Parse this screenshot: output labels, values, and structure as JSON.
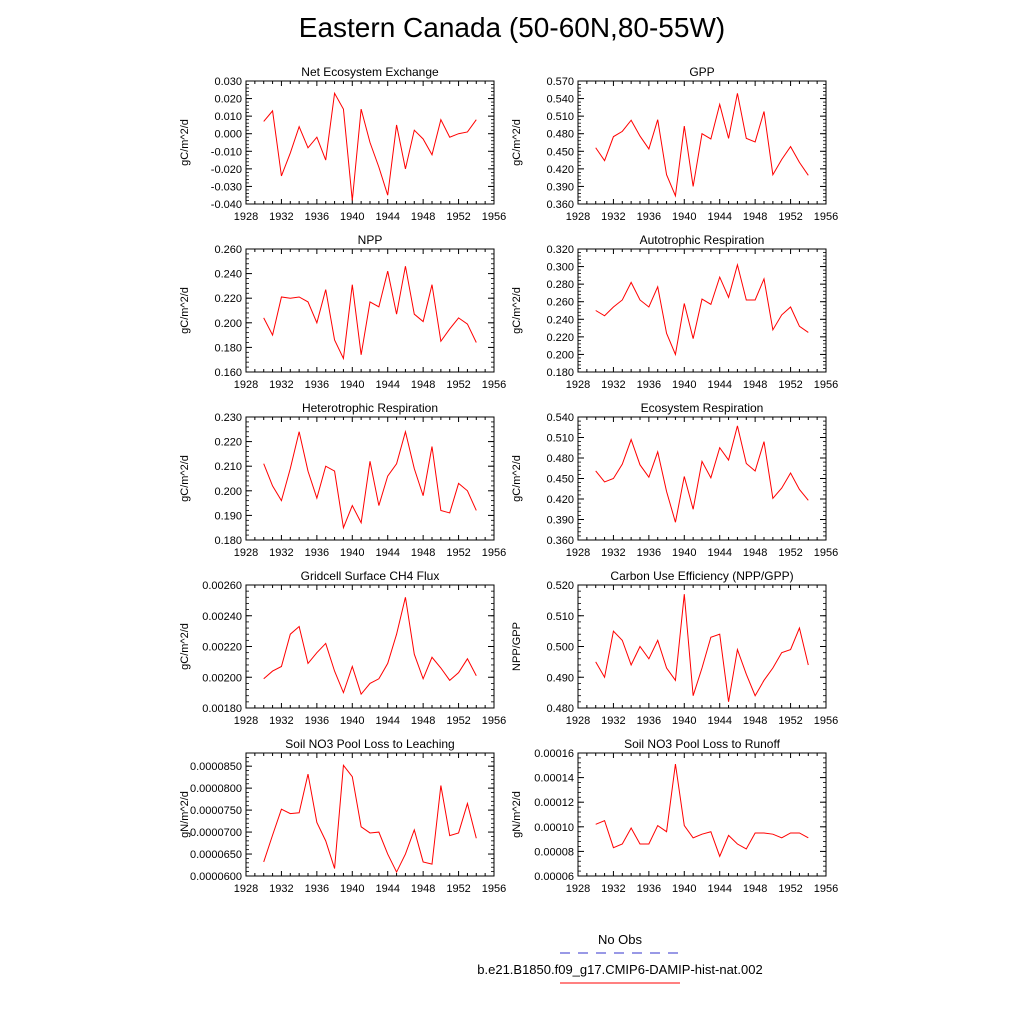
{
  "title": "Eastern Canada (50-60N,80-55W)",
  "legend": [
    {
      "label": "No Obs",
      "color": "#3333cc",
      "style": "dashed"
    },
    {
      "label": "b.e21.B1850.f09_g17.CMIP6-DAMIP-hist-nat.002",
      "color": "#ff0000",
      "style": "solid"
    }
  ],
  "chart_data": [
    {
      "type": "line",
      "title": "Net Ecosystem Exchange",
      "ylabel": "gC/m^2/d",
      "xlim": [
        1928,
        1956
      ],
      "xticks": [
        "1928",
        "1932",
        "1936",
        "1940",
        "1944",
        "1948",
        "1952",
        "1956"
      ],
      "ylim": [
        -0.04,
        0.03
      ],
      "yticks": [
        "-0.040",
        "-0.030",
        "-0.020",
        "-0.010",
        "0.000",
        "0.010",
        "0.020",
        "0.030"
      ],
      "x": [
        1930,
        1931,
        1932,
        1933,
        1934,
        1935,
        1936,
        1937,
        1938,
        1939,
        1940,
        1941,
        1942,
        1943,
        1944,
        1945,
        1946,
        1947,
        1948,
        1949,
        1950,
        1951,
        1952,
        1953,
        1954
      ],
      "series": [
        {
          "color": "#ff0000",
          "values": [
            0.007,
            0.013,
            -0.024,
            -0.011,
            0.004,
            -0.008,
            -0.002,
            -0.015,
            0.023,
            0.014,
            -0.038,
            0.014,
            -0.005,
            -0.019,
            -0.035,
            0.005,
            -0.02,
            0.002,
            -0.003,
            -0.012,
            0.008,
            -0.002,
            -0.0,
            0.001,
            0.008
          ]
        }
      ]
    },
    {
      "type": "line",
      "title": "GPP",
      "ylabel": "gC/m^2/d",
      "xlim": [
        1928,
        1956
      ],
      "xticks": [
        "1928",
        "1932",
        "1936",
        "1940",
        "1944",
        "1948",
        "1952",
        "1956"
      ],
      "ylim": [
        0.36,
        0.57
      ],
      "yticks": [
        "0.360",
        "0.390",
        "0.420",
        "0.450",
        "0.480",
        "0.510",
        "0.540",
        "0.570"
      ],
      "x": [
        1930,
        1931,
        1932,
        1933,
        1934,
        1935,
        1936,
        1937,
        1938,
        1939,
        1940,
        1941,
        1942,
        1943,
        1944,
        1945,
        1946,
        1947,
        1948,
        1949,
        1950,
        1951,
        1952,
        1953,
        1954
      ],
      "series": [
        {
          "color": "#ff0000",
          "values": [
            0.456,
            0.434,
            0.475,
            0.484,
            0.503,
            0.476,
            0.454,
            0.504,
            0.41,
            0.374,
            0.493,
            0.39,
            0.48,
            0.471,
            0.53,
            0.472,
            0.549,
            0.472,
            0.466,
            0.518,
            0.41,
            0.436,
            0.458,
            0.431,
            0.409
          ]
        }
      ]
    },
    {
      "type": "line",
      "title": "NPP",
      "ylabel": "gC/m^2/d",
      "xlim": [
        1928,
        1956
      ],
      "xticks": [
        "1928",
        "1932",
        "1936",
        "1940",
        "1944",
        "1948",
        "1952",
        "1956"
      ],
      "ylim": [
        0.16,
        0.26
      ],
      "yticks": [
        "0.160",
        "0.180",
        "0.200",
        "0.220",
        "0.240",
        "0.260"
      ],
      "x": [
        1930,
        1931,
        1932,
        1933,
        1934,
        1935,
        1936,
        1937,
        1938,
        1939,
        1940,
        1941,
        1942,
        1943,
        1944,
        1945,
        1946,
        1947,
        1948,
        1949,
        1950,
        1951,
        1952,
        1953,
        1954
      ],
      "series": [
        {
          "color": "#ff0000",
          "values": [
            0.204,
            0.19,
            0.221,
            0.22,
            0.221,
            0.217,
            0.2,
            0.227,
            0.186,
            0.171,
            0.231,
            0.174,
            0.217,
            0.213,
            0.242,
            0.207,
            0.246,
            0.207,
            0.201,
            0.231,
            0.185,
            0.195,
            0.204,
            0.199,
            0.184
          ]
        }
      ]
    },
    {
      "type": "line",
      "title": "Autotrophic Respiration",
      "ylabel": "gC/m^2/d",
      "xlim": [
        1928,
        1956
      ],
      "xticks": [
        "1928",
        "1932",
        "1936",
        "1940",
        "1944",
        "1948",
        "1952",
        "1956"
      ],
      "ylim": [
        0.18,
        0.32
      ],
      "yticks": [
        "0.180",
        "0.200",
        "0.220",
        "0.240",
        "0.260",
        "0.280",
        "0.300",
        "0.320"
      ],
      "x": [
        1930,
        1931,
        1932,
        1933,
        1934,
        1935,
        1936,
        1937,
        1938,
        1939,
        1940,
        1941,
        1942,
        1943,
        1944,
        1945,
        1946,
        1947,
        1948,
        1949,
        1950,
        1951,
        1952,
        1953,
        1954
      ],
      "series": [
        {
          "color": "#ff0000",
          "values": [
            0.25,
            0.244,
            0.254,
            0.262,
            0.282,
            0.262,
            0.254,
            0.277,
            0.224,
            0.2,
            0.258,
            0.218,
            0.263,
            0.257,
            0.288,
            0.265,
            0.302,
            0.262,
            0.262,
            0.286,
            0.228,
            0.245,
            0.254,
            0.232,
            0.225
          ]
        }
      ]
    },
    {
      "type": "line",
      "title": "Heterotrophic Respiration",
      "ylabel": "gC/m^2/d",
      "xlim": [
        1928,
        1956
      ],
      "xticks": [
        "1928",
        "1932",
        "1936",
        "1940",
        "1944",
        "1948",
        "1952",
        "1956"
      ],
      "ylim": [
        0.18,
        0.23
      ],
      "yticks": [
        "0.180",
        "0.190",
        "0.200",
        "0.210",
        "0.220",
        "0.230"
      ],
      "x": [
        1930,
        1931,
        1932,
        1933,
        1934,
        1935,
        1936,
        1937,
        1938,
        1939,
        1940,
        1941,
        1942,
        1943,
        1944,
        1945,
        1946,
        1947,
        1948,
        1949,
        1950,
        1951,
        1952,
        1953,
        1954
      ],
      "series": [
        {
          "color": "#ff0000",
          "values": [
            0.211,
            0.202,
            0.196,
            0.209,
            0.224,
            0.208,
            0.197,
            0.21,
            0.208,
            0.185,
            0.194,
            0.187,
            0.212,
            0.194,
            0.206,
            0.211,
            0.224,
            0.209,
            0.198,
            0.218,
            0.192,
            0.191,
            0.203,
            0.2,
            0.192
          ]
        }
      ]
    },
    {
      "type": "line",
      "title": "Ecosystem Respiration",
      "ylabel": "gC/m^2/d",
      "xlim": [
        1928,
        1956
      ],
      "xticks": [
        "1928",
        "1932",
        "1936",
        "1940",
        "1944",
        "1948",
        "1952",
        "1956"
      ],
      "ylim": [
        0.36,
        0.54
      ],
      "yticks": [
        "0.360",
        "0.390",
        "0.420",
        "0.450",
        "0.480",
        "0.510",
        "0.540"
      ],
      "x": [
        1930,
        1931,
        1932,
        1933,
        1934,
        1935,
        1936,
        1937,
        1938,
        1939,
        1940,
        1941,
        1942,
        1943,
        1944,
        1945,
        1946,
        1947,
        1948,
        1949,
        1950,
        1951,
        1952,
        1953,
        1954
      ],
      "series": [
        {
          "color": "#ff0000",
          "values": [
            0.461,
            0.445,
            0.45,
            0.471,
            0.507,
            0.47,
            0.452,
            0.489,
            0.431,
            0.386,
            0.453,
            0.405,
            0.475,
            0.451,
            0.495,
            0.477,
            0.527,
            0.472,
            0.461,
            0.504,
            0.421,
            0.436,
            0.458,
            0.434,
            0.418
          ]
        }
      ]
    },
    {
      "type": "line",
      "title": "Gridcell Surface CH4 Flux",
      "ylabel": "gC/m^2/d",
      "xlim": [
        1928,
        1956
      ],
      "xticks": [
        "1928",
        "1932",
        "1936",
        "1940",
        "1944",
        "1948",
        "1952",
        "1956"
      ],
      "ylim": [
        0.0018,
        0.0026
      ],
      "yticks": [
        "0.00180",
        "0.00200",
        "0.00220",
        "0.00240",
        "0.00260"
      ],
      "x": [
        1930,
        1931,
        1932,
        1933,
        1934,
        1935,
        1936,
        1937,
        1938,
        1939,
        1940,
        1941,
        1942,
        1943,
        1944,
        1945,
        1946,
        1947,
        1948,
        1949,
        1950,
        1951,
        1952,
        1953,
        1954
      ],
      "series": [
        {
          "color": "#ff0000",
          "values": [
            0.00199,
            0.00204,
            0.00207,
            0.00228,
            0.00233,
            0.00209,
            0.00216,
            0.00222,
            0.00204,
            0.0019,
            0.00207,
            0.00189,
            0.00196,
            0.00199,
            0.00209,
            0.00228,
            0.00252,
            0.00215,
            0.00199,
            0.00213,
            0.00206,
            0.00198,
            0.00203,
            0.00212,
            0.00201
          ]
        }
      ]
    },
    {
      "type": "line",
      "title": "Carbon Use Efficiency (NPP/GPP)",
      "ylabel": "NPP/GPP",
      "xlim": [
        1928,
        1956
      ],
      "xticks": [
        "1928",
        "1932",
        "1936",
        "1940",
        "1944",
        "1948",
        "1952",
        "1956"
      ],
      "ylim": [
        0.48,
        0.52
      ],
      "yticks": [
        "0.480",
        "0.490",
        "0.500",
        "0.510",
        "0.520"
      ],
      "x": [
        1930,
        1931,
        1932,
        1933,
        1934,
        1935,
        1936,
        1937,
        1938,
        1939,
        1940,
        1941,
        1942,
        1943,
        1944,
        1945,
        1946,
        1947,
        1948,
        1949,
        1950,
        1951,
        1952,
        1953,
        1954
      ],
      "series": [
        {
          "color": "#ff0000",
          "values": [
            0.495,
            0.49,
            0.505,
            0.502,
            0.494,
            0.5,
            0.496,
            0.502,
            0.493,
            0.489,
            0.517,
            0.484,
            0.493,
            0.503,
            0.504,
            0.482,
            0.499,
            0.491,
            0.484,
            0.489,
            0.493,
            0.498,
            0.499,
            0.506,
            0.494
          ]
        }
      ]
    },
    {
      "type": "line",
      "title": "Soil NO3 Pool Loss to Leaching",
      "ylabel": "gN/m^2/d",
      "xlim": [
        1928,
        1956
      ],
      "xticks": [
        "1928",
        "1932",
        "1936",
        "1940",
        "1944",
        "1948",
        "1952",
        "1956"
      ],
      "ylim": [
        6e-05,
        8.8e-05
      ],
      "yticks": [
        "0.0000600",
        "0.0000650",
        "0.0000700",
        "0.0000750",
        "0.0000800",
        "0.0000850"
      ],
      "x": [
        1930,
        1931,
        1932,
        1933,
        1934,
        1935,
        1936,
        1937,
        1938,
        1939,
        1940,
        1941,
        1942,
        1943,
        1944,
        1945,
        1946,
        1947,
        1948,
        1949,
        1950,
        1951,
        1952,
        1953,
        1954
      ],
      "series": [
        {
          "color": "#ff0000",
          "values": [
            6.32e-05,
            6.93e-05,
            7.52e-05,
            7.42e-05,
            7.44e-05,
            8.32e-05,
            7.22e-05,
            6.8e-05,
            6.17e-05,
            8.52e-05,
            8.26e-05,
            7.12e-05,
            6.98e-05,
            7e-05,
            6.5e-05,
            6.09e-05,
            6.5e-05,
            7.05e-05,
            6.32e-05,
            6.27e-05,
            8.06e-05,
            6.92e-05,
            6.98e-05,
            7.65e-05,
            6.86e-05
          ]
        }
      ]
    },
    {
      "type": "line",
      "title": "Soil NO3 Pool Loss to Runoff",
      "ylabel": "gN/m^2/d",
      "xlim": [
        1928,
        1956
      ],
      "xticks": [
        "1928",
        "1932",
        "1936",
        "1940",
        "1944",
        "1948",
        "1952",
        "1956"
      ],
      "ylim": [
        6e-05,
        0.00016
      ],
      "yticks": [
        "0.00006",
        "0.00008",
        "0.00010",
        "0.00012",
        "0.00014",
        "0.00016"
      ],
      "x": [
        1930,
        1931,
        1932,
        1933,
        1934,
        1935,
        1936,
        1937,
        1938,
        1939,
        1940,
        1941,
        1942,
        1943,
        1944,
        1945,
        1946,
        1947,
        1948,
        1949,
        1950,
        1951,
        1952,
        1953,
        1954
      ],
      "series": [
        {
          "color": "#ff0000",
          "values": [
            0.000102,
            0.000105,
            8.3e-05,
            8.6e-05,
            9.9e-05,
            8.6e-05,
            8.6e-05,
            0.000101,
            9.6e-05,
            0.000151,
            0.000101,
            9.1e-05,
            9.4e-05,
            9.6e-05,
            7.6e-05,
            9.3e-05,
            8.6e-05,
            8.2e-05,
            9.5e-05,
            9.5e-05,
            9.4e-05,
            9.1e-05,
            9.5e-05,
            9.5e-05,
            9.1e-05
          ]
        }
      ]
    }
  ]
}
